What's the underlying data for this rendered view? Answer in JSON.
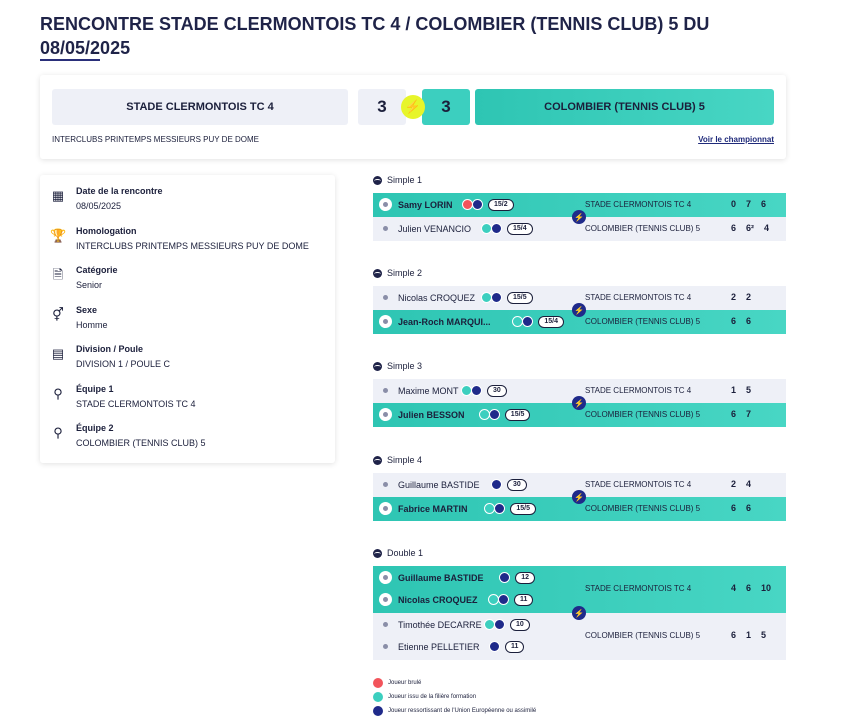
{
  "header": {
    "title_line1": "RENCONTRE STADE CLERMONTOIS TC 4 / COLOMBIER (TENNIS CLUB) 5 DU",
    "title_line2": "08/05/2025"
  },
  "scoreboard": {
    "home_team": "STADE CLERMONTOIS TC 4",
    "home_score": "3",
    "away_score": "3",
    "away_team": "COLOMBIER (TENNIS CLUB) 5",
    "competition": "INTERCLUBS PRINTEMPS MESSIEURS PUY DE DOME",
    "championship_link": "Voir le championnat",
    "bolt_icon": "⚡"
  },
  "info": [
    {
      "icon": "calendar-icon",
      "glyph": "▦",
      "label": "Date de la rencontre",
      "value": "08/05/2025"
    },
    {
      "icon": "trophy-icon",
      "glyph": "🏆",
      "label": "Homologation",
      "value": "INTERCLUBS PRINTEMPS MESSIEURS PUY DE DOME"
    },
    {
      "icon": "document-icon",
      "glyph": "🗎",
      "label": "Catégorie",
      "value": "Senior"
    },
    {
      "icon": "gender-icon",
      "glyph": "⚥",
      "label": "Sexe",
      "value": "Homme"
    },
    {
      "icon": "division-icon",
      "glyph": "▤",
      "label": "Division / Poule",
      "value": "DIVISION 1 / POULE C"
    },
    {
      "icon": "racket-icon",
      "glyph": "⚲",
      "label": "Équipe 1",
      "value": "STADE CLERMONTOIS TC 4"
    },
    {
      "icon": "racket-icon",
      "glyph": "⚲",
      "label": "Équipe 2",
      "value": "COLOMBIER (TENNIS CLUB) 5"
    }
  ],
  "matches": [
    {
      "title": "Simple 1",
      "rows": [
        {
          "name": "Samy LORIN",
          "win": true,
          "badges": [
            "burn",
            "eu"
          ],
          "rank": "15/2",
          "team": "STADE CLERMONTOIS TC 4",
          "sets": [
            "0",
            "7",
            "6"
          ]
        },
        {
          "name": "Julien VENANCIO",
          "win": false,
          "badges": [
            "form",
            "eu"
          ],
          "rank": "15/4",
          "team": "COLOMBIER (TENNIS CLUB) 5",
          "sets": [
            "6",
            "6²",
            "4"
          ]
        }
      ]
    },
    {
      "title": "Simple 2",
      "rows": [
        {
          "name": "Nicolas CROQUEZ",
          "win": false,
          "badges": [
            "form",
            "eu"
          ],
          "rank": "15/5",
          "team": "STADE CLERMONTOIS TC 4",
          "sets": [
            "2",
            "2"
          ]
        },
        {
          "name": "Jean-Roch MARQUI...",
          "win": true,
          "badges": [
            "form",
            "eu"
          ],
          "rank": "15/4",
          "team": "COLOMBIER (TENNIS CLUB) 5",
          "sets": [
            "6",
            "6"
          ]
        }
      ]
    },
    {
      "title": "Simple 3",
      "rows": [
        {
          "name": "Maxime MONT",
          "win": false,
          "badges": [
            "form",
            "eu"
          ],
          "rank": "30",
          "team": "STADE CLERMONTOIS TC 4",
          "sets": [
            "1",
            "5"
          ]
        },
        {
          "name": "Julien BESSON",
          "win": true,
          "badges": [
            "form",
            "eu"
          ],
          "rank": "15/5",
          "team": "COLOMBIER (TENNIS CLUB) 5",
          "sets": [
            "6",
            "7"
          ]
        }
      ]
    },
    {
      "title": "Simple 4",
      "rows": [
        {
          "name": "Guillaume BASTIDE",
          "win": false,
          "badges": [
            "eu"
          ],
          "rank": "30",
          "team": "STADE CLERMONTOIS TC 4",
          "sets": [
            "2",
            "4"
          ]
        },
        {
          "name": "Fabrice MARTIN",
          "win": true,
          "badges": [
            "form",
            "eu"
          ],
          "rank": "15/5",
          "team": "COLOMBIER (TENNIS CLUB) 5",
          "sets": [
            "6",
            "6"
          ]
        }
      ]
    }
  ],
  "double": {
    "title": "Double 1",
    "home": {
      "win": true,
      "team": "STADE CLERMONTOIS TC 4",
      "sets": [
        "4",
        "6",
        "10"
      ],
      "players": [
        {
          "name": "Guillaume BASTIDE",
          "badges": [
            "eu"
          ],
          "rank": "12"
        },
        {
          "name": "Nicolas CROQUEZ",
          "badges": [
            "form",
            "eu"
          ],
          "rank": "11"
        }
      ]
    },
    "away": {
      "win": false,
      "team": "COLOMBIER (TENNIS CLUB) 5",
      "sets": [
        "6",
        "1",
        "5"
      ],
      "players": [
        {
          "name": "Timothée DECARRE",
          "badges": [
            "form",
            "eu"
          ],
          "rank": "10"
        },
        {
          "name": "Etienne PELLETIER",
          "badges": [
            "eu"
          ],
          "rank": "11"
        }
      ]
    }
  },
  "legend": [
    {
      "kind": "burn",
      "label": "Joueur brulé"
    },
    {
      "kind": "form",
      "label": "Joueur issu de la filière formation"
    },
    {
      "kind": "eu",
      "label": "Joueur ressortissant de l'Union Européenne ou assimilé"
    }
  ],
  "colors": {
    "accent": "#3ccfbf",
    "navy": "#1f2a8a",
    "bolt": "#e7f52a"
  }
}
